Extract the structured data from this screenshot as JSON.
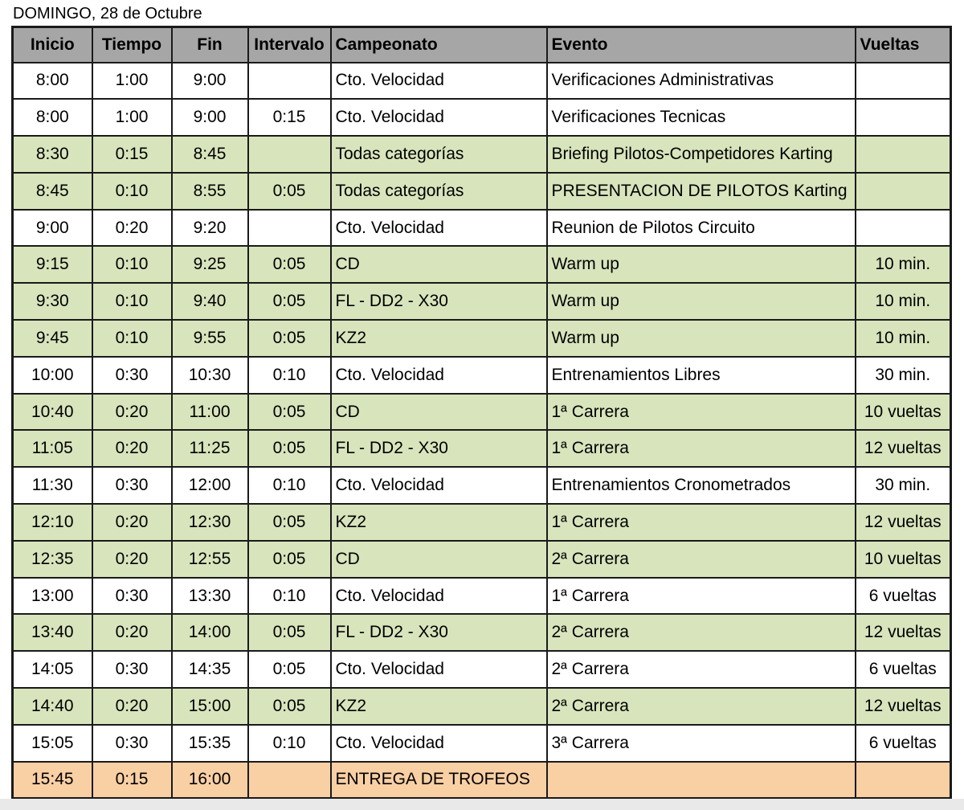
{
  "document": {
    "title": "DOMINGO, 28 de Octubre"
  },
  "colors": {
    "header_bg": "#a6a6a6",
    "row_white": "#ffffff",
    "row_green": "#d8e4bc",
    "row_orange": "#f9cfa4",
    "border": "#1a1a1a",
    "page_margin": "#e9e9e9"
  },
  "table": {
    "columns": [
      {
        "key": "inicio",
        "label": "Inicio",
        "header_align": "center",
        "cell_align": "center"
      },
      {
        "key": "tiempo",
        "label": "Tiempo",
        "header_align": "center",
        "cell_align": "center"
      },
      {
        "key": "fin",
        "label": "Fin",
        "header_align": "center",
        "cell_align": "center"
      },
      {
        "key": "intervalo",
        "label": "Intervalo",
        "header_align": "center",
        "cell_align": "center"
      },
      {
        "key": "campeonato",
        "label": "Campeonato",
        "header_align": "left",
        "cell_align": "left"
      },
      {
        "key": "evento",
        "label": "Evento",
        "header_align": "left",
        "cell_align": "left"
      },
      {
        "key": "vueltas",
        "label": "Vueltas",
        "header_align": "left",
        "cell_align": "center"
      }
    ],
    "rows": [
      {
        "shade": "white",
        "cells": [
          "8:00",
          "1:00",
          "9:00",
          "",
          "Cto. Velocidad",
          "Verificaciones Administrativas",
          ""
        ]
      },
      {
        "shade": "white",
        "cells": [
          "8:00",
          "1:00",
          "9:00",
          "0:15",
          "Cto. Velocidad",
          "Verificaciones Tecnicas",
          ""
        ]
      },
      {
        "shade": "green",
        "cells": [
          "8:30",
          "0:15",
          "8:45",
          "",
          "Todas categorías",
          "Briefing Pilotos-Competidores Karting",
          ""
        ]
      },
      {
        "shade": "green",
        "cells": [
          "8:45",
          "0:10",
          "8:55",
          "0:05",
          "Todas categorías",
          "PRESENTACION DE PILOTOS Karting",
          ""
        ]
      },
      {
        "shade": "white",
        "cells": [
          "9:00",
          "0:20",
          "9:20",
          "",
          "Cto. Velocidad",
          "Reunion de Pilotos Circuito",
          ""
        ]
      },
      {
        "shade": "green",
        "cells": [
          "9:15",
          "0:10",
          "9:25",
          "0:05",
          "CD",
          "Warm up",
          "10 min."
        ]
      },
      {
        "shade": "green",
        "cells": [
          "9:30",
          "0:10",
          "9:40",
          "0:05",
          "FL - DD2 - X30",
          "Warm up",
          "10 min."
        ]
      },
      {
        "shade": "green",
        "cells": [
          "9:45",
          "0:10",
          "9:55",
          "0:05",
          "KZ2",
          "Warm up",
          "10 min."
        ]
      },
      {
        "shade": "white",
        "cells": [
          "10:00",
          "0:30",
          "10:30",
          "0:10",
          "Cto. Velocidad",
          "Entrenamientos Libres",
          "30 min."
        ]
      },
      {
        "shade": "green",
        "cells": [
          "10:40",
          "0:20",
          "11:00",
          "0:05",
          "CD",
          "1ª Carrera",
          "10 vueltas"
        ]
      },
      {
        "shade": "green",
        "cells": [
          "11:05",
          "0:20",
          "11:25",
          "0:05",
          "FL - DD2 - X30",
          "1ª Carrera",
          "12 vueltas"
        ]
      },
      {
        "shade": "white",
        "cells": [
          "11:30",
          "0:30",
          "12:00",
          "0:10",
          "Cto. Velocidad",
          "Entrenamientos Cronometrados",
          "30 min."
        ]
      },
      {
        "shade": "green",
        "cells": [
          "12:10",
          "0:20",
          "12:30",
          "0:05",
          "KZ2",
          "1ª Carrera",
          "12 vueltas"
        ]
      },
      {
        "shade": "green",
        "cells": [
          "12:35",
          "0:20",
          "12:55",
          "0:05",
          "CD",
          "2ª Carrera",
          "10 vueltas"
        ]
      },
      {
        "shade": "white",
        "cells": [
          "13:00",
          "0:30",
          "13:30",
          "0:10",
          "Cto. Velocidad",
          "1ª Carrera",
          "6 vueltas"
        ]
      },
      {
        "shade": "green",
        "cells": [
          "13:40",
          "0:20",
          "14:00",
          "0:05",
          "FL - DD2 - X30",
          "2ª Carrera",
          "12 vueltas"
        ]
      },
      {
        "shade": "white",
        "cells": [
          "14:05",
          "0:30",
          "14:35",
          "0:05",
          "Cto. Velocidad",
          "2ª Carrera",
          "6 vueltas"
        ]
      },
      {
        "shade": "green",
        "cells": [
          "14:40",
          "0:20",
          "15:00",
          "0:05",
          "KZ2",
          "2ª Carrera",
          "12 vueltas"
        ]
      },
      {
        "shade": "white",
        "cells": [
          "15:05",
          "0:30",
          "15:35",
          "0:10",
          "Cto. Velocidad",
          "3ª Carrera",
          "6 vueltas"
        ]
      },
      {
        "shade": "orange",
        "cells": [
          "15:45",
          "0:15",
          "16:00",
          "",
          "ENTREGA DE TROFEOS",
          "",
          ""
        ]
      }
    ]
  }
}
